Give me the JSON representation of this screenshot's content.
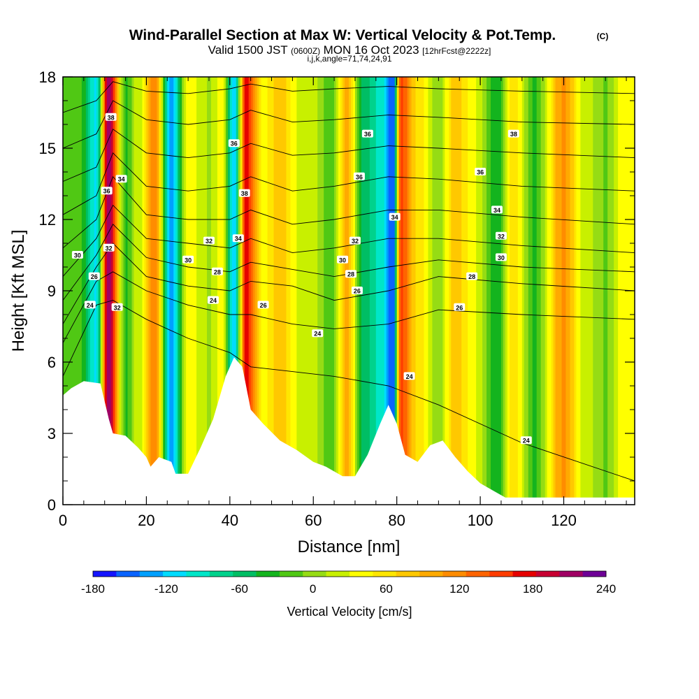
{
  "title": "Wind-Parallel Section at Max W: Vertical Velocity & Pot.Temp.",
  "copyright": "(C)",
  "valid_prefix": "Valid 1500 JST",
  "valid_utc": "(0600Z)",
  "valid_date": "MON 16 Oct 2023",
  "forecast_info": "[12hrFcst@2222z]",
  "indices": "i,j,k,angle=71,74,24,91",
  "chart_data": {
    "type": "heatmap",
    "xlabel": "Distance [nm]",
    "ylabel": "Height [Kft MSL]",
    "xlim": [
      0,
      137
    ],
    "ylim": [
      0,
      18
    ],
    "x_ticks": [
      "0",
      "20",
      "40",
      "60",
      "80",
      "100",
      "120"
    ],
    "y_ticks": [
      "0",
      "3",
      "6",
      "9",
      "12",
      "15",
      "18"
    ],
    "x_tick_values": [
      0,
      20,
      40,
      60,
      80,
      100,
      120
    ],
    "y_tick_values": [
      0,
      3,
      6,
      9,
      12,
      15,
      18
    ],
    "colorbar": {
      "label": "Vertical Velocity [cm/s]",
      "min": -180,
      "max": 240,
      "ticks": [
        "-180",
        "-120",
        "-60",
        "0",
        "60",
        "120",
        "180",
        "240"
      ],
      "tick_values": [
        -180,
        -120,
        -60,
        0,
        60,
        120,
        180,
        240
      ],
      "colors": [
        "#1414ff",
        "#0a64ff",
        "#00a0ff",
        "#00dcff",
        "#00e6c8",
        "#00d28c",
        "#00be64",
        "#14b41e",
        "#50c814",
        "#96dc14",
        "#c8f000",
        "#ffff00",
        "#ffe600",
        "#ffc800",
        "#ffaa00",
        "#ff8c00",
        "#ff6400",
        "#ff3c00",
        "#e60000",
        "#c80032",
        "#a00064",
        "#6e0096"
      ]
    },
    "velocity_columns": [
      {
        "x": 4,
        "w": -20
      },
      {
        "x": 8,
        "w": -110
      },
      {
        "x": 11,
        "w": 220
      },
      {
        "x": 15,
        "w": -30
      },
      {
        "x": 18,
        "w": 20
      },
      {
        "x": 22,
        "w": 120
      },
      {
        "x": 26,
        "w": -130
      },
      {
        "x": 30,
        "w": 40
      },
      {
        "x": 35,
        "w": 10
      },
      {
        "x": 38,
        "w": 40
      },
      {
        "x": 41,
        "w": -110
      },
      {
        "x": 44,
        "w": 170
      },
      {
        "x": 48,
        "w": 40
      },
      {
        "x": 52,
        "w": 80
      },
      {
        "x": 56,
        "w": 30
      },
      {
        "x": 60,
        "w": 20
      },
      {
        "x": 64,
        "w": -20
      },
      {
        "x": 68,
        "w": 90
      },
      {
        "x": 72,
        "w": -50
      },
      {
        "x": 76,
        "w": -90
      },
      {
        "x": 79,
        "w": -160
      },
      {
        "x": 81,
        "w": 150
      },
      {
        "x": 85,
        "w": 60
      },
      {
        "x": 90,
        "w": 0
      },
      {
        "x": 94,
        "w": 80
      },
      {
        "x": 99,
        "w": 30
      },
      {
        "x": 104,
        "w": -40
      },
      {
        "x": 108,
        "w": 60
      },
      {
        "x": 113,
        "w": -30
      },
      {
        "x": 120,
        "w": 110
      },
      {
        "x": 125,
        "w": 20
      },
      {
        "x": 130,
        "w": -10
      },
      {
        "x": 134,
        "w": 40
      }
    ],
    "terrain": [
      [
        0,
        4.6
      ],
      [
        2,
        4.9
      ],
      [
        5,
        5.2
      ],
      [
        9,
        5.1
      ],
      [
        11,
        3.6
      ],
      [
        12,
        3.0
      ],
      [
        15,
        2.9
      ],
      [
        18,
        2.4
      ],
      [
        20,
        2.0
      ],
      [
        21,
        1.6
      ],
      [
        23,
        2.0
      ],
      [
        26,
        1.8
      ],
      [
        27,
        1.3
      ],
      [
        30,
        1.3
      ],
      [
        33,
        2.4
      ],
      [
        36,
        3.6
      ],
      [
        39,
        5.4
      ],
      [
        41,
        6.2
      ],
      [
        43,
        5.8
      ],
      [
        45,
        4.0
      ],
      [
        48,
        3.4
      ],
      [
        52,
        2.7
      ],
      [
        56,
        2.3
      ],
      [
        60,
        1.8
      ],
      [
        63,
        1.6
      ],
      [
        67,
        1.2
      ],
      [
        70,
        1.2
      ],
      [
        73,
        2.1
      ],
      [
        76,
        3.4
      ],
      [
        78,
        4.2
      ],
      [
        80,
        3.4
      ],
      [
        82,
        2.1
      ],
      [
        85,
        1.8
      ],
      [
        88,
        2.5
      ],
      [
        91,
        2.7
      ],
      [
        94,
        2.0
      ],
      [
        97,
        1.4
      ],
      [
        100,
        0.9
      ],
      [
        103,
        0.6
      ],
      [
        106,
        0.3
      ],
      [
        137,
        0.3
      ]
    ],
    "theta_contours": [
      {
        "label": "24",
        "y": [
          5.4,
          8.4,
          8.6,
          7.8,
          7.0,
          6.4,
          5.8,
          5.6,
          5.4,
          5.0,
          4.2,
          2.6,
          1.0
        ]
      },
      {
        "label": "26",
        "y": [
          6.8,
          9.4,
          9.8,
          9.0,
          8.4,
          8.0,
          8.0,
          7.6,
          7.4,
          7.6,
          8.2,
          8.0,
          7.8
        ]
      },
      {
        "label": "28",
        "y": [
          7.6,
          10.0,
          11.0,
          9.6,
          9.2,
          9.0,
          9.4,
          9.2,
          8.6,
          9.0,
          9.6,
          9.3,
          9.0
        ]
      },
      {
        "label": "30",
        "y": [
          8.6,
          10.5,
          11.8,
          10.4,
          10.0,
          9.8,
          10.2,
          9.9,
          9.6,
          10.0,
          10.3,
          10.0,
          9.8
        ]
      },
      {
        "label": "32",
        "y": [
          9.6,
          11.2,
          12.6,
          11.2,
          11.0,
          10.8,
          11.2,
          10.6,
          10.8,
          11.2,
          11.2,
          10.9,
          10.6
        ]
      },
      {
        "label": "34",
        "y": [
          10.8,
          12.0,
          13.8,
          12.2,
          12.0,
          12.0,
          12.4,
          11.8,
          12.0,
          12.4,
          12.4,
          12.1,
          11.8
        ]
      },
      {
        "label": "36",
        "y": [
          12.2,
          13.0,
          14.8,
          13.4,
          13.2,
          13.4,
          13.8,
          13.2,
          13.4,
          13.8,
          13.7,
          13.4,
          13.2
        ]
      },
      {
        "label": "36",
        "y": [
          13.6,
          14.2,
          15.8,
          14.8,
          14.6,
          14.8,
          15.2,
          14.7,
          14.8,
          15.1,
          15.0,
          14.8,
          14.6
        ]
      },
      {
        "label": "38",
        "y": [
          15.0,
          15.6,
          17.0,
          16.2,
          16.0,
          16.2,
          16.6,
          16.1,
          16.2,
          16.4,
          16.3,
          16.1,
          16.0
        ]
      },
      {
        "label": "",
        "y": [
          16.5,
          17.0,
          17.8,
          17.4,
          17.3,
          17.5,
          17.7,
          17.4,
          17.5,
          17.6,
          17.5,
          17.4,
          17.3
        ]
      }
    ],
    "contour_x": [
      0,
      8,
      12,
      20,
      30,
      40,
      45,
      55,
      65,
      78,
      90,
      110,
      137
    ],
    "contour_labels": [
      {
        "text": "24",
        "x": 6.5,
        "y": 8.4
      },
      {
        "text": "26",
        "x": 7.5,
        "y": 9.6
      },
      {
        "text": "30",
        "x": 3.5,
        "y": 10.5
      },
      {
        "text": "32",
        "x": 11,
        "y": 10.8
      },
      {
        "text": "36",
        "x": 10.5,
        "y": 13.2
      },
      {
        "text": "34",
        "x": 14,
        "y": 13.7
      },
      {
        "text": "38",
        "x": 11.5,
        "y": 16.3
      },
      {
        "text": "32",
        "x": 13,
        "y": 8.3
      },
      {
        "text": "30",
        "x": 30,
        "y": 10.3
      },
      {
        "text": "32",
        "x": 35,
        "y": 11.1
      },
      {
        "text": "28",
        "x": 37,
        "y": 9.8
      },
      {
        "text": "24",
        "x": 36,
        "y": 8.6
      },
      {
        "text": "34",
        "x": 42,
        "y": 11.2
      },
      {
        "text": "38",
        "x": 43.5,
        "y": 13.1
      },
      {
        "text": "36",
        "x": 41,
        "y": 15.2
      },
      {
        "text": "26",
        "x": 48,
        "y": 8.4
      },
      {
        "text": "24",
        "x": 61,
        "y": 7.2
      },
      {
        "text": "30",
        "x": 67,
        "y": 10.3
      },
      {
        "text": "32",
        "x": 70,
        "y": 11.1
      },
      {
        "text": "28",
        "x": 69,
        "y": 9.7
      },
      {
        "text": "26",
        "x": 70.5,
        "y": 9.0
      },
      {
        "text": "36",
        "x": 71,
        "y": 13.8
      },
      {
        "text": "36",
        "x": 73,
        "y": 15.6
      },
      {
        "text": "34",
        "x": 79.5,
        "y": 12.1
      },
      {
        "text": "24",
        "x": 83,
        "y": 5.4
      },
      {
        "text": "26",
        "x": 95,
        "y": 8.3
      },
      {
        "text": "28",
        "x": 98,
        "y": 9.6
      },
      {
        "text": "30",
        "x": 105,
        "y": 10.4
      },
      {
        "text": "32",
        "x": 105,
        "y": 11.3
      },
      {
        "text": "34",
        "x": 104,
        "y": 12.4
      },
      {
        "text": "36",
        "x": 100,
        "y": 14.0
      },
      {
        "text": "38",
        "x": 108,
        "y": 15.6
      },
      {
        "text": "24",
        "x": 111,
        "y": 2.7
      }
    ]
  }
}
